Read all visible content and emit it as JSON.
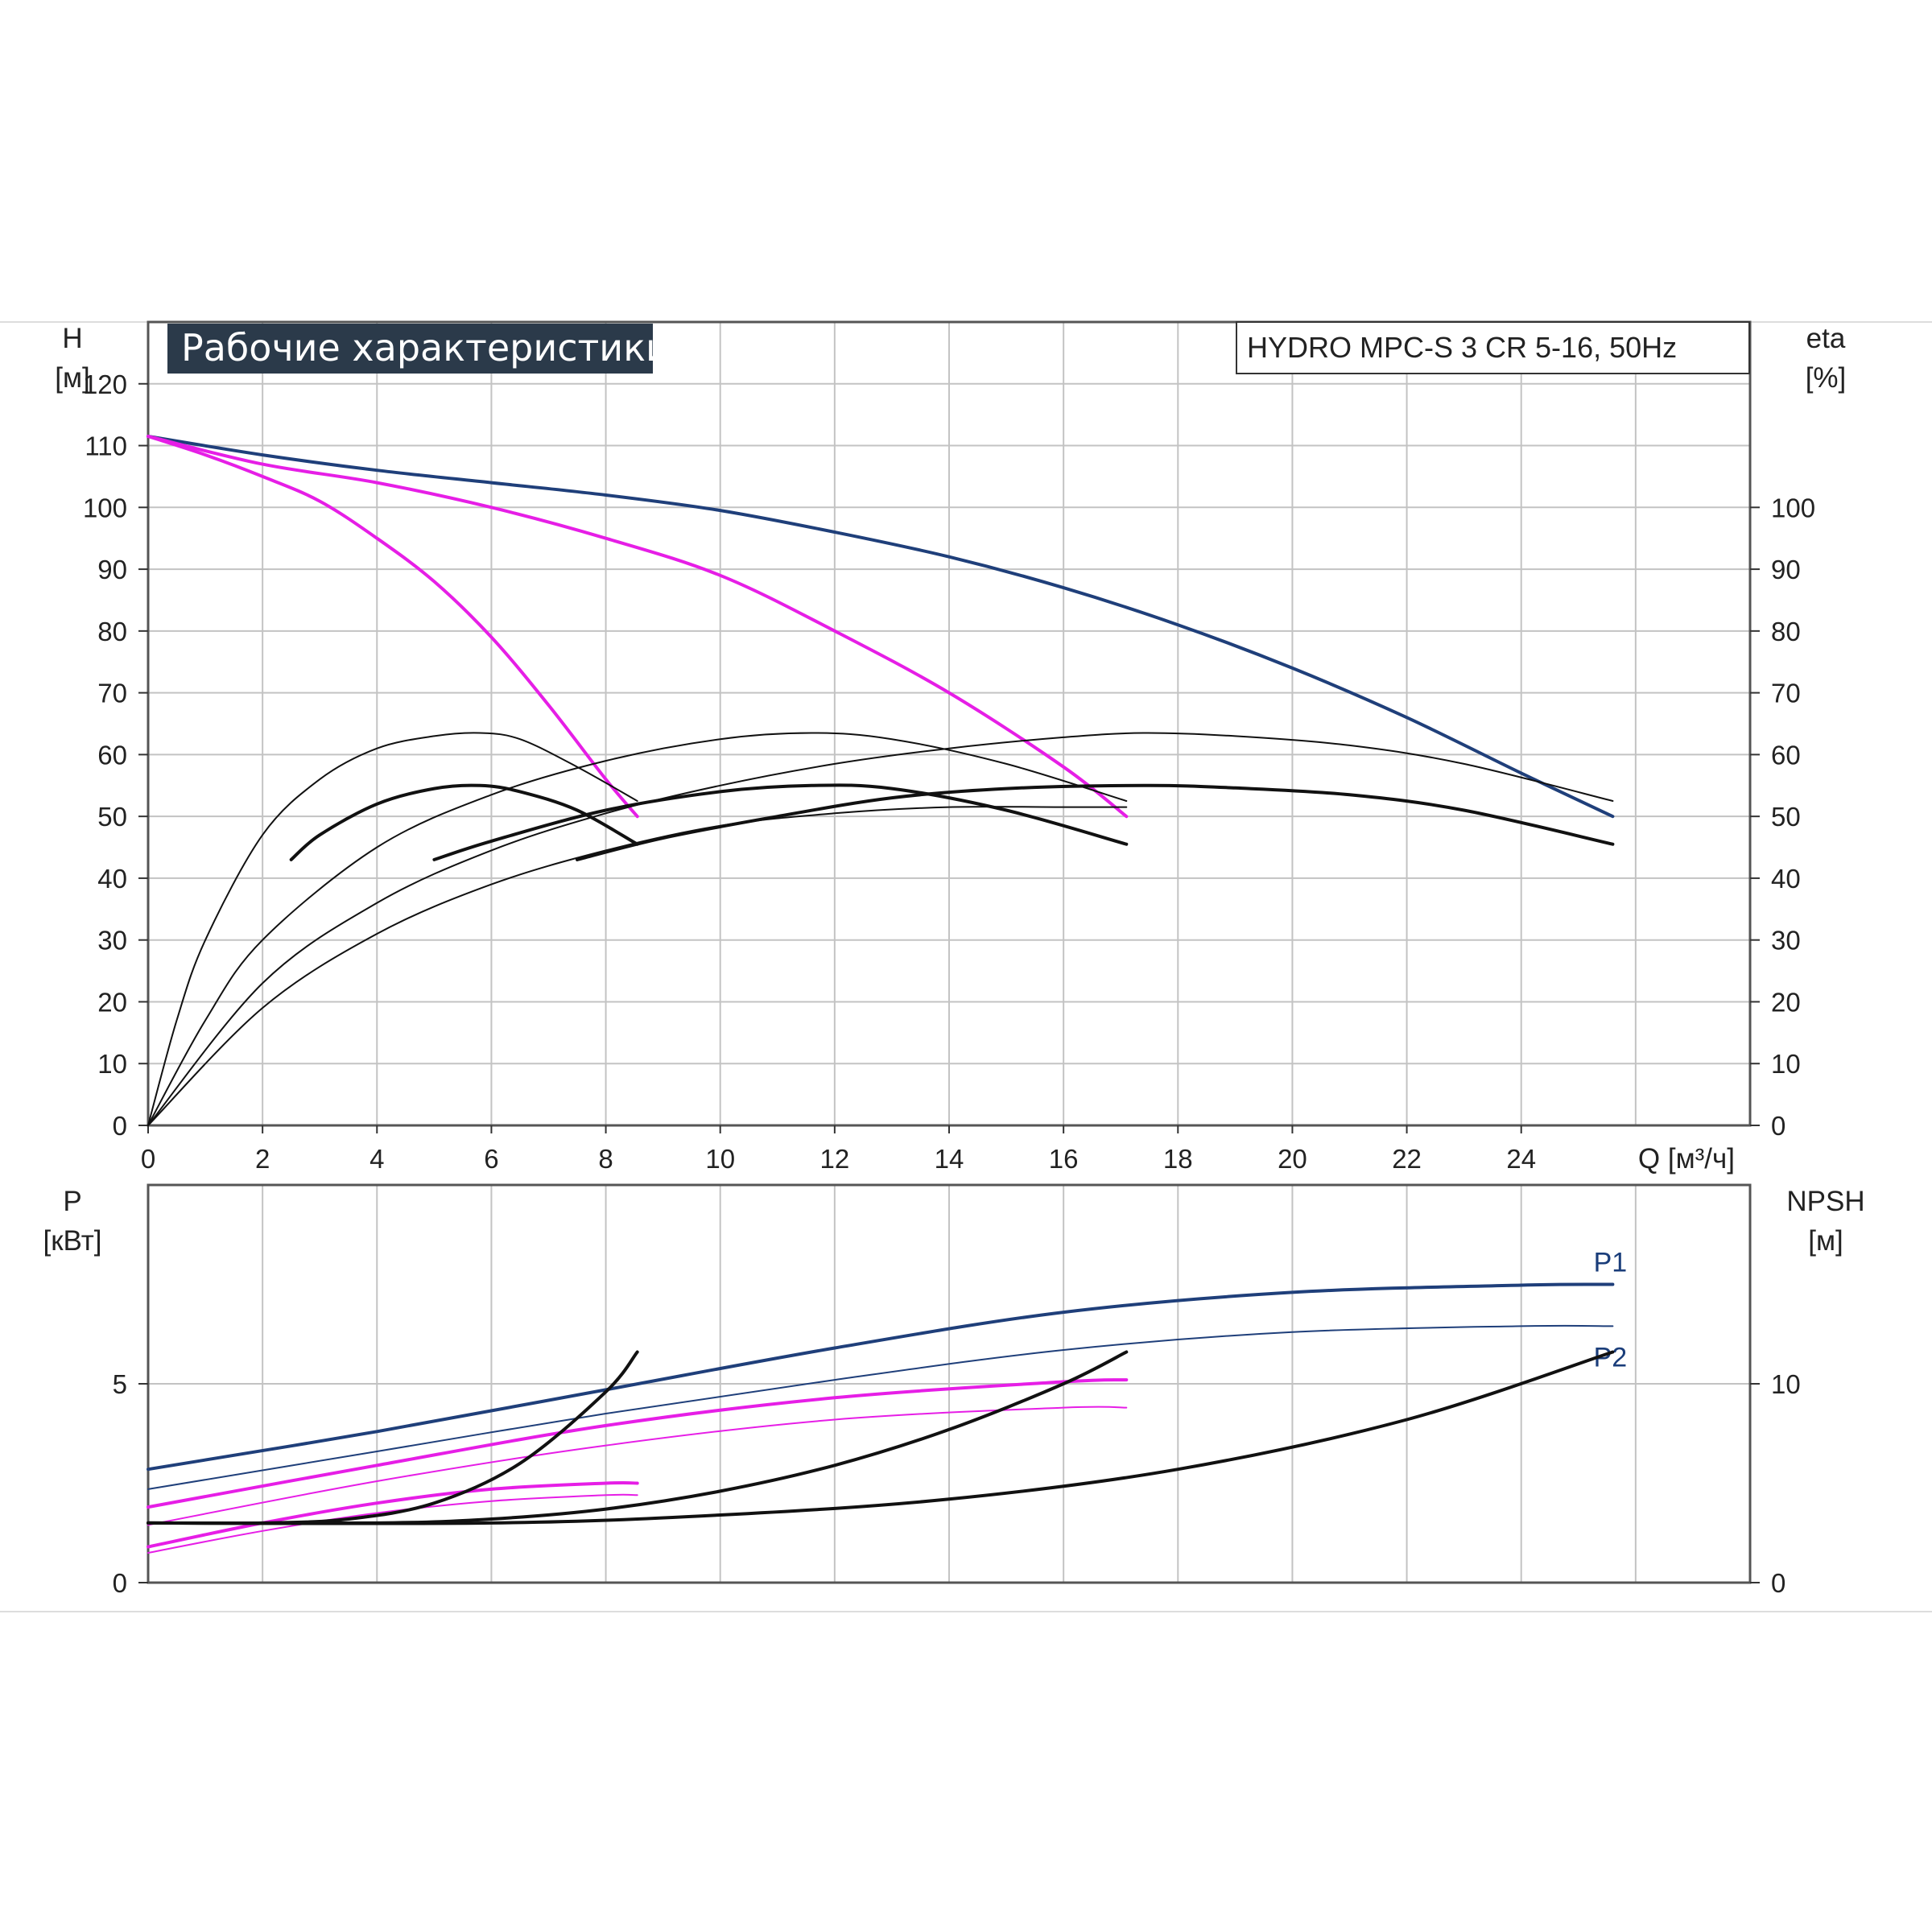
{
  "title": "Рабочие характеристики",
  "model": "HYDRO MPC-S 3 CR 5-16, 50Hz",
  "colors": {
    "navy": "#1f3f7a",
    "magenta": "#e61ee6",
    "black": "#111111",
    "grid": "#c3c3c3",
    "title_bg": "#2b3a4a"
  },
  "chart_data": [
    {
      "id": "performance",
      "type": "line",
      "x_axis": {
        "label": "Q [м³/ч]",
        "range": [
          0,
          28
        ],
        "ticks": [
          0,
          2,
          4,
          6,
          8,
          10,
          12,
          14,
          16,
          18,
          20,
          22,
          24
        ]
      },
      "y_left": {
        "label_line1": "H",
        "label_line2": "[м]",
        "range": [
          0,
          130
        ],
        "ticks": [
          0,
          10,
          20,
          30,
          40,
          50,
          60,
          70,
          80,
          90,
          100,
          110,
          120
        ]
      },
      "y_right": {
        "label_line1": "eta",
        "label_line2": "[%]",
        "range": [
          0,
          130
        ],
        "ticks": [
          0,
          10,
          20,
          30,
          40,
          50,
          60,
          70,
          80,
          90,
          100
        ]
      },
      "grid": true,
      "series": [
        {
          "color": "navy",
          "width": 4,
          "x": [
            0,
            2,
            4,
            6,
            8,
            10,
            12,
            14,
            16,
            18,
            20,
            22,
            24,
            25.6
          ],
          "y": [
            111.5,
            108.5,
            106,
            104,
            102,
            99.5,
            96,
            92,
            87,
            81,
            74,
            66,
            57,
            50
          ]
        },
        {
          "color": "magenta",
          "width": 4,
          "x": [
            0,
            2,
            4,
            6,
            8,
            10,
            12,
            14,
            16,
            17.1
          ],
          "y": [
            111.5,
            107,
            104,
            100,
            95,
            89,
            80,
            70,
            58,
            50
          ]
        },
        {
          "color": "magenta",
          "width": 4,
          "x": [
            0,
            1,
            2,
            3,
            4,
            5,
            6,
            7,
            8,
            8.55
          ],
          "y": [
            111.5,
            108.5,
            105,
            101,
            95,
            88,
            79,
            68,
            56,
            50
          ]
        },
        {
          "color": "black",
          "width": 2,
          "x": [
            0,
            0.5,
            1,
            2,
            3,
            4,
            5,
            5.8,
            6.5,
            7.5,
            8.55
          ],
          "y": [
            0,
            17,
            30,
            47,
            56,
            61,
            63,
            63.5,
            62.5,
            58,
            52.5
          ]
        },
        {
          "color": "black",
          "width": 4,
          "x": [
            2.5,
            3,
            4,
            5,
            5.8,
            6.5,
            7.5,
            8.55
          ],
          "y": [
            43,
            47,
            52,
            54.5,
            55,
            54,
            51,
            45.5
          ]
        },
        {
          "color": "black",
          "width": 2,
          "x": [
            0,
            1,
            2,
            4,
            6,
            8,
            10,
            11.6,
            13,
            15,
            17.1
          ],
          "y": [
            0,
            17,
            30,
            45,
            53.5,
            59,
            62.5,
            63.5,
            62.5,
            58.5,
            52.5
          ]
        },
        {
          "color": "black",
          "width": 4,
          "x": [
            5,
            6,
            8,
            10,
            11.6,
            13,
            15,
            17.1
          ],
          "y": [
            43,
            46,
            51,
            54,
            55,
            54.5,
            51,
            45.5
          ]
        },
        {
          "color": "black",
          "width": 2,
          "x": [
            0,
            2,
            4,
            6,
            8,
            10,
            12,
            14,
            16,
            17.4,
            19,
            21,
            23,
            25.6
          ],
          "y": [
            0,
            23,
            36,
            44.5,
            50.5,
            55,
            58.5,
            61,
            62.8,
            63.5,
            63,
            61.5,
            58.5,
            52.5
          ]
        },
        {
          "color": "black",
          "width": 4,
          "x": [
            7.5,
            9,
            11,
            13,
            15,
            17.4,
            19,
            21,
            23,
            25.6
          ],
          "y": [
            43,
            46.5,
            50,
            53,
            54.5,
            55,
            54.6,
            53.5,
            51,
            45.5
          ]
        },
        {
          "color": "black",
          "width": 2,
          "x": [
            0,
            2,
            4,
            6,
            8,
            10,
            12,
            14,
            16,
            17.1
          ],
          "y": [
            0,
            19,
            31,
            39,
            44.5,
            48.5,
            50.5,
            51.5,
            51.5,
            51.5
          ]
        }
      ]
    },
    {
      "id": "power",
      "type": "line",
      "x_axis": {
        "label": "",
        "range": [
          0,
          28
        ],
        "ticks": []
      },
      "y_left": {
        "label_line1": "P",
        "label_line2": "[кВт]",
        "range": [
          0,
          10
        ],
        "ticks": [
          0,
          5
        ]
      },
      "y_right": {
        "label_line1": "NPSH",
        "label_line2": "[м]",
        "range": [
          0,
          20
        ],
        "ticks": [
          0,
          10
        ]
      },
      "grid": true,
      "series": [
        {
          "name": "P1",
          "color": "navy",
          "width": 4,
          "x": [
            0,
            4,
            8,
            12,
            16,
            20,
            24,
            25.6
          ],
          "y": [
            2.85,
            3.8,
            4.85,
            5.9,
            6.8,
            7.3,
            7.48,
            7.5
          ]
        },
        {
          "name": "P2",
          "color": "navy",
          "width": 2,
          "x": [
            0,
            4,
            8,
            12,
            16,
            20,
            24,
            25.6
          ],
          "y": [
            2.35,
            3.3,
            4.25,
            5.1,
            5.85,
            6.3,
            6.45,
            6.45
          ]
        },
        {
          "color": "magenta",
          "width": 4,
          "x": [
            0,
            4,
            8,
            12,
            16,
            17.1
          ],
          "y": [
            1.9,
            2.95,
            3.95,
            4.65,
            5.05,
            5.1
          ]
        },
        {
          "color": "magenta",
          "width": 2,
          "x": [
            0,
            4,
            8,
            12,
            16,
            17.1
          ],
          "y": [
            1.45,
            2.55,
            3.45,
            4.1,
            4.4,
            4.4
          ]
        },
        {
          "color": "magenta",
          "width": 4,
          "x": [
            0,
            2,
            4,
            6,
            8,
            8.55
          ],
          "y": [
            0.9,
            1.5,
            2.0,
            2.35,
            2.5,
            2.5
          ]
        },
        {
          "color": "magenta",
          "width": 2,
          "x": [
            0,
            2,
            4,
            6,
            8,
            8.55
          ],
          "y": [
            0.75,
            1.3,
            1.75,
            2.05,
            2.2,
            2.2
          ]
        },
        {
          "color": "black",
          "width": 4,
          "x": [
            0,
            2,
            3.5,
            5,
            6.5,
            8,
            8.55
          ],
          "y": [
            1.5,
            1.5,
            1.6,
            2.0,
            3.0,
            4.8,
            5.8
          ]
        },
        {
          "color": "black",
          "width": 4,
          "x": [
            0,
            4,
            6,
            8,
            10,
            12,
            14,
            16,
            17.1
          ],
          "y": [
            1.5,
            1.5,
            1.6,
            1.85,
            2.3,
            2.95,
            3.85,
            5.0,
            5.8
          ]
        },
        {
          "color": "black",
          "width": 4,
          "x": [
            0,
            6,
            10,
            14,
            18,
            22,
            25.6
          ],
          "y": [
            1.5,
            1.5,
            1.7,
            2.1,
            2.85,
            4.1,
            5.8
          ]
        }
      ]
    }
  ]
}
